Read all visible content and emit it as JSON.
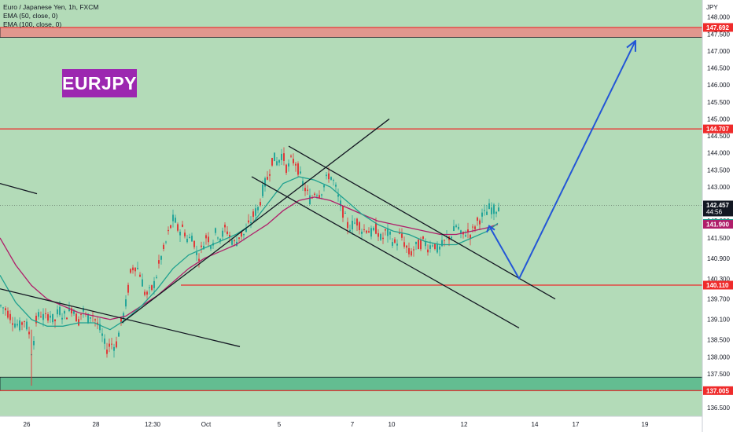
{
  "header": {
    "title": "Euro / Japanese Yen, 1h, FXCM",
    "indicators": [
      "EMA (50, close, 0)",
      "EMA (100, close, 0)"
    ],
    "symbol_badge": "EURJPY",
    "currency": "JPY"
  },
  "colors": {
    "background_green": "#b3dbb8",
    "zone_red": "#f08080",
    "zone_green": "#63bd91",
    "red_line": "#ef2b2b",
    "ema50": "#20a190",
    "ema100": "#b01e6a",
    "trend_line": "#131722",
    "arrow": "#2356d6",
    "candle_up": "#26a69a",
    "candle_down": "#e03a3a",
    "badge": "#9c27b0"
  },
  "chart_data": {
    "type": "candlestick",
    "title": "Euro / Japanese Yen, 1h, FXCM",
    "ylim": [
      136.25,
      148.5
    ],
    "y_ticks": [
      "148.000",
      "147.500",
      "147.000",
      "146.500",
      "146.000",
      "145.500",
      "145.000",
      "144.500",
      "144.000",
      "143.500",
      "143.000",
      "142.500",
      "142.000",
      "141.500",
      "140.900",
      "140.300",
      "139.700",
      "139.100",
      "138.500",
      "138.000",
      "137.500",
      "136.500"
    ],
    "x_ticks": [
      "26",
      "28",
      "12:30",
      "Oct",
      "5",
      "7",
      "10",
      "12",
      "14",
      "17",
      "19"
    ],
    "price_badges": [
      {
        "label": "147.692",
        "value": 147.692,
        "color": "#ef2b2b"
      },
      {
        "label": "144.707",
        "value": 144.707,
        "color": "#ef2b2b"
      },
      {
        "label": "142.457",
        "sub": "44:56",
        "value": 142.457,
        "color": "#131722"
      },
      {
        "label": "141.925",
        "value": 141.925,
        "color": "#20a190"
      },
      {
        "label": "141.900",
        "value": 141.9,
        "color": "#b01e6a"
      },
      {
        "label": "140.110",
        "value": 140.11,
        "color": "#ef2b2b"
      },
      {
        "label": "137.005",
        "value": 137.005,
        "color": "#ef2b2b"
      }
    ],
    "horizontal_levels": [
      147.692,
      144.707,
      140.11,
      137.005
    ],
    "current_price": 142.457,
    "resistance_zone": [
      147.4,
      147.692
    ],
    "support_zone": [
      137.005,
      137.4
    ],
    "close_path": [
      [
        0,
        139.5
      ],
      [
        6,
        139.4
      ],
      [
        12,
        139.2
      ],
      [
        18,
        139.0
      ],
      [
        24,
        138.9
      ],
      [
        30,
        139.1
      ],
      [
        36,
        138.7
      ],
      [
        40,
        138.0
      ],
      [
        44,
        139.0
      ],
      [
        50,
        139.3
      ],
      [
        56,
        139.1
      ],
      [
        62,
        139.3
      ],
      [
        68,
        139.0
      ],
      [
        74,
        139.4
      ],
      [
        80,
        139.2
      ],
      [
        86,
        139.3
      ],
      [
        92,
        139.5
      ],
      [
        98,
        139.0
      ],
      [
        104,
        139.4
      ],
      [
        110,
        139.1
      ],
      [
        116,
        139.3
      ],
      [
        122,
        139.0
      ],
      [
        128,
        138.7
      ],
      [
        134,
        138.2
      ],
      [
        140,
        138.4
      ],
      [
        146,
        138.3
      ],
      [
        152,
        138.9
      ],
      [
        158,
        139.4
      ],
      [
        162,
        140.0
      ],
      [
        166,
        140.6
      ],
      [
        172,
        140.7
      ],
      [
        178,
        140.4
      ],
      [
        184,
        139.8
      ],
      [
        190,
        139.9
      ],
      [
        196,
        140.2
      ],
      [
        202,
        140.8
      ],
      [
        208,
        141.2
      ],
      [
        214,
        141.7
      ],
      [
        220,
        142.1
      ],
      [
        226,
        141.7
      ],
      [
        232,
        141.8
      ],
      [
        238,
        141.4
      ],
      [
        244,
        141.6
      ],
      [
        250,
        140.9
      ],
      [
        256,
        141.2
      ],
      [
        262,
        141.6
      ],
      [
        268,
        141.3
      ],
      [
        274,
        141.7
      ],
      [
        280,
        141.5
      ],
      [
        286,
        141.8
      ],
      [
        292,
        141.5
      ],
      [
        298,
        141.3
      ],
      [
        304,
        141.6
      ],
      [
        310,
        141.6
      ],
      [
        316,
        141.9
      ],
      [
        322,
        142.2
      ],
      [
        328,
        142.4
      ],
      [
        334,
        143.0
      ],
      [
        340,
        143.3
      ],
      [
        346,
        143.9
      ],
      [
        352,
        143.7
      ],
      [
        358,
        144.0
      ],
      [
        364,
        143.5
      ],
      [
        370,
        143.8
      ],
      [
        376,
        143.7
      ],
      [
        382,
        143.2
      ],
      [
        388,
        142.9
      ],
      [
        394,
        142.6
      ],
      [
        400,
        142.9
      ],
      [
        406,
        142.8
      ],
      [
        412,
        143.1
      ],
      [
        418,
        143.4
      ],
      [
        424,
        143.1
      ],
      [
        430,
        142.6
      ],
      [
        436,
        142.2
      ],
      [
        442,
        141.8
      ],
      [
        448,
        141.9
      ],
      [
        454,
        142.0
      ],
      [
        460,
        141.7
      ],
      [
        466,
        141.8
      ],
      [
        472,
        141.6
      ],
      [
        478,
        141.8
      ],
      [
        484,
        141.4
      ],
      [
        490,
        141.7
      ],
      [
        496,
        141.5
      ],
      [
        502,
        141.3
      ],
      [
        508,
        141.6
      ],
      [
        514,
        141.3
      ],
      [
        520,
        141.0
      ],
      [
        526,
        141.2
      ],
      [
        532,
        141.3
      ],
      [
        538,
        141.4
      ],
      [
        544,
        141.2
      ],
      [
        550,
        141.4
      ],
      [
        556,
        141.1
      ],
      [
        562,
        141.3
      ],
      [
        568,
        141.5
      ],
      [
        574,
        141.6
      ],
      [
        580,
        141.9
      ],
      [
        586,
        141.5
      ],
      [
        592,
        141.7
      ],
      [
        598,
        141.6
      ],
      [
        604,
        141.9
      ],
      [
        610,
        142.1
      ],
      [
        616,
        142.2
      ],
      [
        622,
        142.4
      ],
      [
        628,
        142.3
      ],
      [
        633,
        142.45
      ]
    ],
    "ema50": [
      [
        0,
        140.4
      ],
      [
        20,
        139.6
      ],
      [
        40,
        139.1
      ],
      [
        60,
        138.9
      ],
      [
        80,
        138.9
      ],
      [
        100,
        139.0
      ],
      [
        120,
        139.0
      ],
      [
        140,
        138.8
      ],
      [
        160,
        139.1
      ],
      [
        180,
        139.5
      ],
      [
        200,
        140.0
      ],
      [
        220,
        140.6
      ],
      [
        240,
        141.0
      ],
      [
        260,
        141.2
      ],
      [
        280,
        141.4
      ],
      [
        300,
        141.6
      ],
      [
        320,
        141.9
      ],
      [
        340,
        142.5
      ],
      [
        360,
        143.1
      ],
      [
        380,
        143.3
      ],
      [
        400,
        143.2
      ],
      [
        420,
        143.0
      ],
      [
        440,
        142.6
      ],
      [
        460,
        142.2
      ],
      [
        480,
        141.9
      ],
      [
        500,
        141.7
      ],
      [
        520,
        141.6
      ],
      [
        540,
        141.4
      ],
      [
        560,
        141.3
      ],
      [
        580,
        141.3
      ],
      [
        600,
        141.5
      ],
      [
        620,
        141.7
      ],
      [
        633,
        141.93
      ]
    ],
    "ema100": [
      [
        0,
        141.5
      ],
      [
        20,
        140.7
      ],
      [
        40,
        140.1
      ],
      [
        60,
        139.7
      ],
      [
        80,
        139.5
      ],
      [
        100,
        139.3
      ],
      [
        120,
        139.2
      ],
      [
        140,
        139.1
      ],
      [
        160,
        139.2
      ],
      [
        180,
        139.5
      ],
      [
        200,
        139.8
      ],
      [
        220,
        140.2
      ],
      [
        240,
        140.6
      ],
      [
        260,
        140.9
      ],
      [
        280,
        141.1
      ],
      [
        300,
        141.3
      ],
      [
        320,
        141.6
      ],
      [
        340,
        141.9
      ],
      [
        360,
        142.3
      ],
      [
        380,
        142.6
      ],
      [
        400,
        142.7
      ],
      [
        420,
        142.6
      ],
      [
        440,
        142.4
      ],
      [
        460,
        142.2
      ],
      [
        480,
        142.0
      ],
      [
        500,
        141.9
      ],
      [
        520,
        141.8
      ],
      [
        540,
        141.7
      ],
      [
        560,
        141.6
      ],
      [
        580,
        141.6
      ],
      [
        600,
        141.7
      ],
      [
        620,
        141.8
      ],
      [
        633,
        141.9
      ]
    ],
    "trend_lines": [
      [
        [
          0,
          143.1
        ],
        [
          47,
          142.8
        ]
      ],
      [
        [
          0,
          140.0
        ],
        [
          305,
          138.3
        ]
      ],
      [
        [
          155,
          139.0
        ],
        [
          495,
          145.0
        ]
      ],
      [
        [
          320,
          143.3
        ],
        [
          660,
          138.85
        ]
      ],
      [
        [
          367,
          144.2
        ],
        [
          706,
          139.7
        ]
      ]
    ],
    "projection_arrow": [
      [
        622,
        141.85
      ],
      [
        660,
        140.3
      ],
      [
        808,
        147.3
      ]
    ]
  }
}
